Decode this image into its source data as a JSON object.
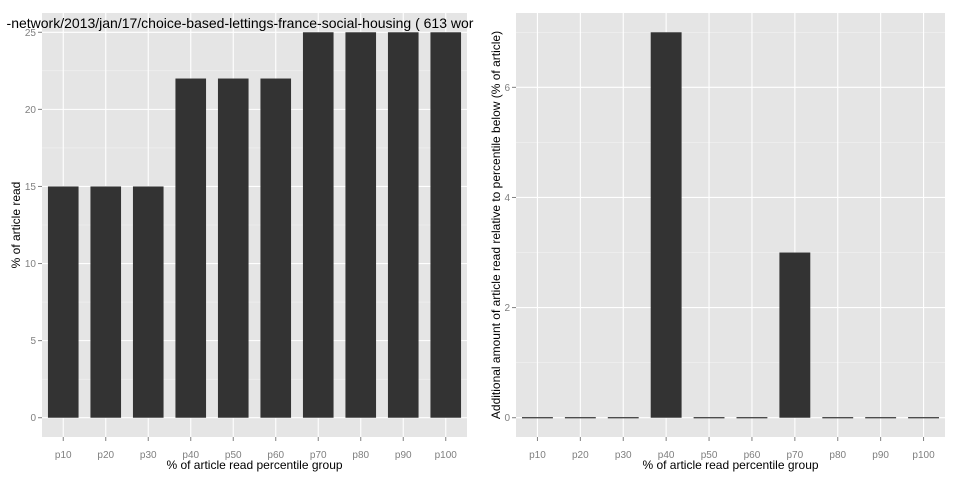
{
  "title": "-network/2013/jan/17/choice-based-lettings-france-social-housing ( 613 wor",
  "chart_data": [
    {
      "type": "bar",
      "categories": [
        "p10",
        "p20",
        "p30",
        "p40",
        "p50",
        "p60",
        "p70",
        "p80",
        "p90",
        "p100"
      ],
      "values": [
        15,
        15,
        15,
        22,
        22,
        22,
        25,
        25,
        25,
        25
      ],
      "xlabel": "% of article read percentile group",
      "ylabel": "% of article read",
      "ylim": [
        -1.25,
        26.25
      ],
      "yticks": [
        0,
        5,
        10,
        15,
        20,
        25
      ],
      "bar_color": "#333333",
      "panel_color": "#e5e5e5",
      "grid": true,
      "legend": "none"
    },
    {
      "type": "bar",
      "categories": [
        "p10",
        "p20",
        "p30",
        "p40",
        "p50",
        "p60",
        "p70",
        "p80",
        "p90",
        "p100"
      ],
      "values": [
        0,
        0,
        0,
        7,
        0,
        0,
        3,
        0,
        0,
        0
      ],
      "xlabel": "% of article read percentile group",
      "ylabel": "Additional amount of article read relative to percentile below (% of article)",
      "ylim": [
        -0.35,
        7.35
      ],
      "yticks": [
        0,
        2,
        4,
        6
      ],
      "bar_color": "#333333",
      "panel_color": "#e5e5e5",
      "grid": true,
      "legend": "none"
    }
  ]
}
